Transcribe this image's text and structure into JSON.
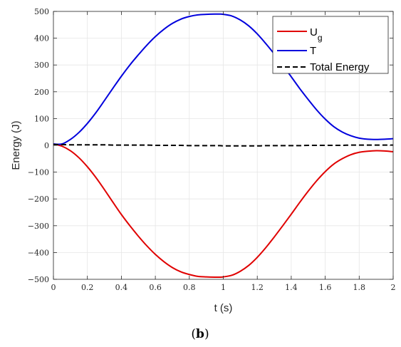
{
  "chart_data": {
    "type": "line",
    "xlabel": "t (s)",
    "ylabel": "Energy (J)",
    "xlim": [
      0,
      2
    ],
    "ylim": [
      -500,
      500
    ],
    "xticks": [
      "0",
      "0.2",
      "0.4",
      "0.6",
      "0.8",
      "1",
      "1.2",
      "1.4",
      "1.6",
      "1.8",
      "2"
    ],
    "yticks": [
      "500",
      "400",
      "300",
      "200",
      "100",
      "0",
      "−100",
      "−200",
      "−300",
      "−400",
      "−500"
    ],
    "grid": true,
    "legend_position": "top-right",
    "legend_entries": [
      {
        "base": "U",
        "sub": "g"
      },
      {
        "base": "T",
        "sub": ""
      },
      {
        "base": "Total Energy",
        "sub": ""
      }
    ],
    "x": [
      0,
      0.05,
      0.1,
      0.15,
      0.2,
      0.25,
      0.3,
      0.35,
      0.4,
      0.45,
      0.5,
      0.55,
      0.6,
      0.65,
      0.7,
      0.75,
      0.8,
      0.85,
      0.9,
      0.95,
      0.98,
      1.0,
      1.05,
      1.1,
      1.15,
      1.2,
      1.25,
      1.3,
      1.35,
      1.4,
      1.45,
      1.5,
      1.55,
      1.6,
      1.65,
      1.7,
      1.75,
      1.8,
      1.85,
      1.9,
      1.95,
      2.0
    ],
    "series": [
      {
        "name": "U_g",
        "color": "#e00000",
        "style": "solid",
        "values": [
          5,
          -3,
          -20,
          -46,
          -80,
          -120,
          -165,
          -212,
          -258,
          -300,
          -339,
          -375,
          -407,
          -434,
          -456,
          -472,
          -482,
          -489,
          -491,
          -492,
          -492,
          -491,
          -485,
          -470,
          -448,
          -418,
          -382,
          -342,
          -300,
          -257,
          -213,
          -171,
          -132,
          -98,
          -70,
          -50,
          -35,
          -26,
          -22,
          -20,
          -21,
          -24
        ]
      },
      {
        "name": "T",
        "color": "#0000dd",
        "style": "solid",
        "values": [
          5,
          5,
          22,
          48,
          82,
          122,
          167,
          213,
          258,
          300,
          338,
          374,
          406,
          433,
          455,
          471,
          481,
          487,
          489,
          490,
          490,
          489,
          483,
          468,
          446,
          416,
          380,
          341,
          299,
          256,
          212,
          171,
          132,
          98,
          70,
          50,
          36,
          27,
          23,
          22,
          23,
          25
        ]
      },
      {
        "name": "Total Energy",
        "color": "#000000",
        "style": "dashed",
        "values": [
          3,
          3,
          2,
          2,
          2,
          2,
          2,
          1,
          1,
          1,
          1,
          1,
          0,
          0,
          0,
          0,
          -1,
          -1,
          -1,
          -1,
          -1,
          -2,
          -2,
          -2,
          -2,
          -2,
          -1,
          -1,
          -1,
          -1,
          -1,
          0,
          0,
          0,
          0,
          0,
          1,
          1,
          1,
          1,
          1,
          1
        ]
      }
    ]
  },
  "caption": {
    "text": "(b)",
    "paren_open": "(",
    "letter": "b",
    "paren_close": ")"
  }
}
